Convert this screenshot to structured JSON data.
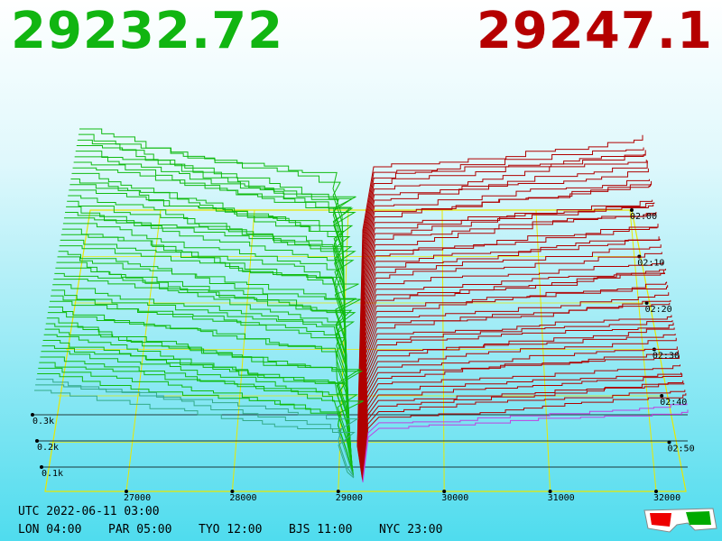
{
  "header": {
    "bid": "29232.72",
    "ask": "29247.1"
  },
  "price_axis": [
    "27000",
    "28000",
    "29000",
    "30000",
    "31000",
    "32000"
  ],
  "depth_axis": [
    "0.3k",
    "0.2k",
    "0.1k"
  ],
  "time_axis": [
    "02:00",
    "02:10",
    "02:20",
    "02:30",
    "02:40",
    "02:50"
  ],
  "footer": {
    "utc": "UTC 2022-06-11 03:00",
    "zones": [
      "LON 04:00",
      "PAR 05:00",
      "TYO 12:00",
      "BJS 11:00",
      "NYC 23:00"
    ]
  }
}
